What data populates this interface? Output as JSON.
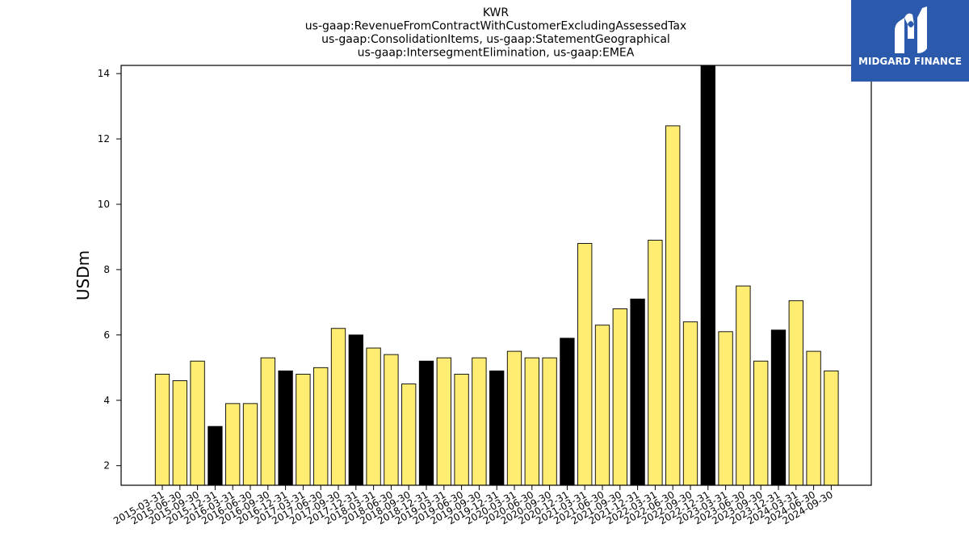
{
  "chart_data": {
    "type": "bar",
    "title_lines": [
      "KWR",
      "us-gaap:RevenueFromContractWithCustomerExcludingAssessedTax",
      "us-gaap:ConsolidationItems, us-gaap:StatementGeographical",
      "us-gaap:IntersegmentElimination, us-gaap:EMEA"
    ],
    "ylabel": "USDm",
    "xlabel": "",
    "ylim": [
      1.4,
      14.25
    ],
    "yticks": [
      2,
      4,
      6,
      8,
      10,
      12,
      14
    ],
    "grid": false,
    "categories": [
      "2015-03-31",
      "2015-06-30",
      "2015-09-30",
      "2015-12-31",
      "2016-03-31",
      "2016-06-30",
      "2016-09-30",
      "2016-12-31",
      "2017-03-31",
      "2017-06-30",
      "2017-09-30",
      "2017-12-31",
      "2018-03-31",
      "2018-06-30",
      "2018-09-30",
      "2018-12-31",
      "2019-03-31",
      "2019-06-30",
      "2019-09-30",
      "2019-12-31",
      "2020-03-31",
      "2020-06-30",
      "2020-09-30",
      "2020-12-31",
      "2021-03-31",
      "2021-06-30",
      "2021-09-30",
      "2021-12-31",
      "2022-03-31",
      "2022-06-30",
      "2022-09-30",
      "2022-12-31",
      "2023-03-31",
      "2023-06-30",
      "2023-09-30",
      "2023-12-31",
      "2024-03-31",
      "2024-06-30",
      "2024-09-30"
    ],
    "values": [
      4.8,
      4.6,
      5.2,
      3.2,
      3.9,
      3.9,
      5.3,
      4.9,
      4.8,
      5.0,
      6.2,
      6.0,
      5.6,
      5.4,
      4.5,
      5.2,
      5.3,
      4.8,
      5.3,
      4.9,
      5.5,
      5.3,
      5.3,
      5.9,
      8.8,
      6.3,
      6.8,
      7.1,
      8.9,
      12.4,
      6.4,
      14.3,
      6.1,
      7.5,
      5.2,
      6.15,
      7.05,
      5.5,
      4.9
    ],
    "highlight_quarter_end": "12-31",
    "colors": {
      "bar": "#ffec73",
      "highlight": "#000000",
      "edge": "#000000"
    }
  },
  "logo": {
    "text": "MIDGARD FINANCE",
    "bg": "#2b5aad"
  }
}
